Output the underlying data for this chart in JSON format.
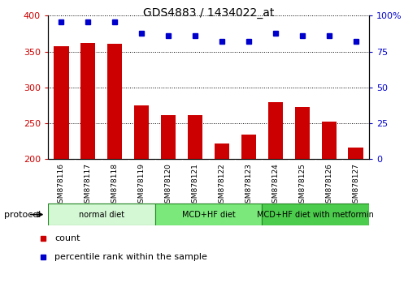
{
  "title": "GDS4883 / 1434022_at",
  "samples": [
    "GSM878116",
    "GSM878117",
    "GSM878118",
    "GSM878119",
    "GSM878120",
    "GSM878121",
    "GSM878122",
    "GSM878123",
    "GSM878124",
    "GSM878125",
    "GSM878126",
    "GSM878127"
  ],
  "bar_values": [
    358,
    362,
    361,
    275,
    262,
    262,
    222,
    234,
    280,
    273,
    253,
    216
  ],
  "percentile_values": [
    96,
    96,
    96,
    88,
    86,
    86,
    82,
    82,
    88,
    86,
    86,
    82
  ],
  "bar_color": "#cc0000",
  "dot_color": "#0000cc",
  "ylim_left": [
    200,
    400
  ],
  "ylim_right": [
    0,
    100
  ],
  "yticks_left": [
    200,
    250,
    300,
    350,
    400
  ],
  "yticks_right": [
    0,
    25,
    50,
    75,
    100
  ],
  "groups": [
    {
      "label": "normal diet",
      "start": 0,
      "end": 4,
      "color": "#d4f7d4"
    },
    {
      "label": "MCD+HF diet",
      "start": 4,
      "end": 8,
      "color": "#7ae87a"
    },
    {
      "label": "MCD+HF diet with metformin",
      "start": 8,
      "end": 12,
      "color": "#4ccc4c"
    }
  ],
  "protocol_label": "protocol",
  "legend_items": [
    {
      "label": "count",
      "color": "#cc0000"
    },
    {
      "label": "percentile rank within the sample",
      "color": "#0000cc"
    }
  ],
  "background_color": "#ffffff",
  "plot_bg_color": "#ffffff",
  "bar_width": 0.55,
  "tick_label_color_left": "#cc0000",
  "tick_label_color_right": "#0000cc",
  "cell_bg_color": "#c8c8c8",
  "cell_border_color": "#ffffff"
}
